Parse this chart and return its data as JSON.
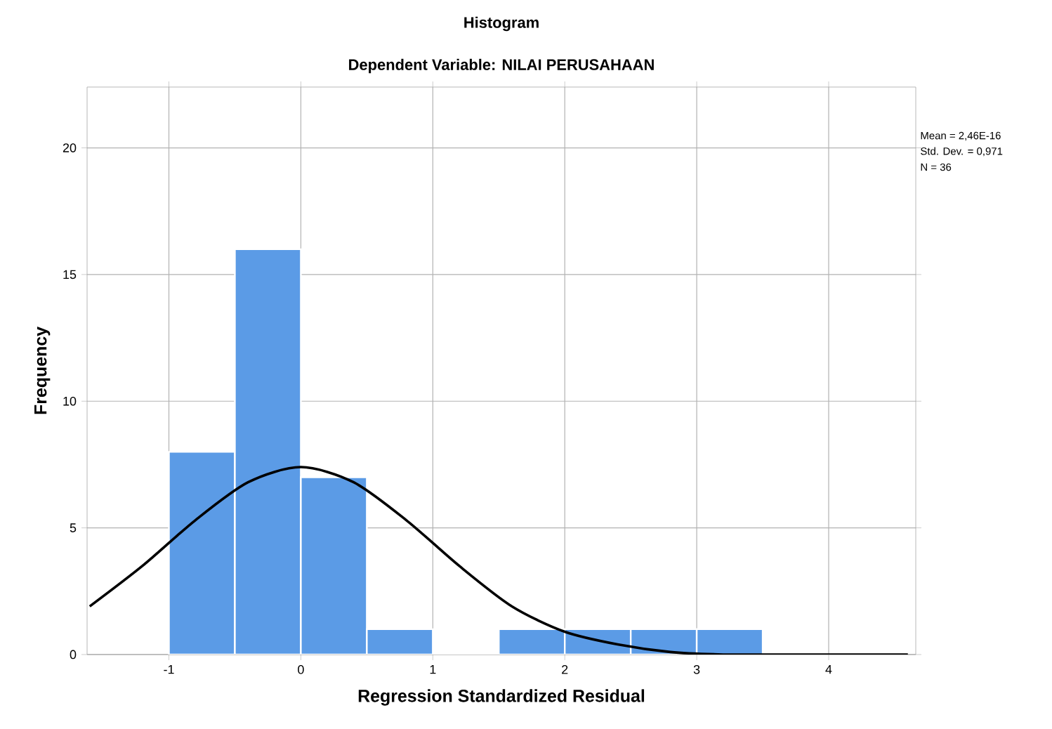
{
  "chart_data": {
    "type": "histogram",
    "title": "Histogram",
    "subtitle": "Dependent Variable: NILAI PERUSAHAAN",
    "xlabel": "Regression Standardized Residual",
    "ylabel": "Frequency",
    "annotations": [
      "Mean = 2,46E-16",
      "Std. Dev. = 0,971",
      "N = 36"
    ],
    "series": [
      {
        "color": "#5b9be6",
        "bins": [
          -1,
          -0.5,
          0,
          0.5,
          1,
          1.5,
          2,
          2.5,
          3,
          3.5
        ],
        "values": [
          8,
          16,
          7,
          1,
          0,
          1,
          1,
          1,
          1
        ]
      },
      {
        "type": "line",
        "color": "#000000",
        "x": [
          -1.6,
          -1.2,
          -0.8,
          -0.4,
          0,
          0.4,
          0.8,
          1.2,
          1.6,
          2.0,
          2.4,
          2.8,
          3.2,
          3.6,
          4.0,
          4.6
        ],
        "values": [
          1.9,
          3.5,
          5.3,
          6.8,
          7.4,
          6.8,
          5.3,
          3.5,
          1.9,
          0.9,
          0.4,
          0.1,
          0.0,
          0.0,
          0.0,
          0.0
        ]
      }
    ],
    "xlim": [
      -1.62,
      4.66
    ],
    "ylim": [
      0,
      22.4
    ],
    "xticks": [
      -1,
      0,
      1,
      2,
      3,
      4
    ],
    "yticks": [
      0,
      5,
      10,
      15,
      20
    ],
    "grid": true,
    "marker": "none",
    "line_style": "solid"
  }
}
